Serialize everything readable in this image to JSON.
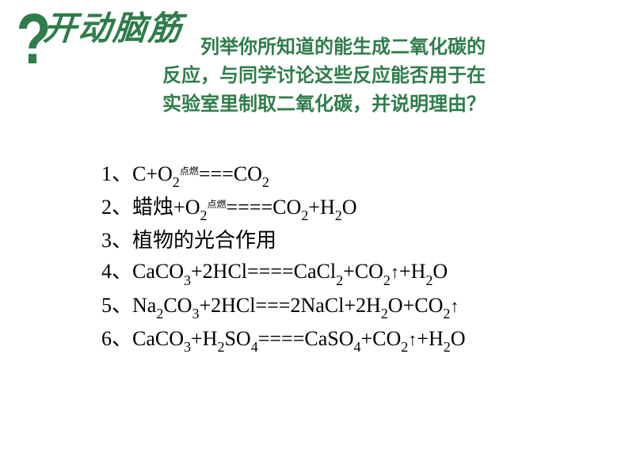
{
  "title": "开动脑筋",
  "question": {
    "line1": "列举你所知道的能生成二氧化碳的",
    "line2": "反应，与同学讨论这些反应能否用于在",
    "line3": "实验室里制取二氧化碳，并说明理由？"
  },
  "equations": {
    "items": [
      {
        "num": "1、",
        "content_html": "C+O<span class='sub'>2</span><span class='condition' style='top:-8px;'>点燃</span>===CO<span class='sub'>2</span>"
      },
      {
        "num": "2、",
        "content_html": "<span class='cn'>蜡烛</span>+O<span class='sub'>2</span><span class='condition' style='top:-8px;'>点燃</span>====CO<span class='sub'>2</span>+H<span class='sub'>2</span>O"
      },
      {
        "num": "3、",
        "content_html": "<span class='cn'>植物的光合作用</span>"
      },
      {
        "num": "4、",
        "content_html": "CaCO<span class='sub'>3</span>+2HCl====CaCl<span class='sub'>2</span>+CO<span class='sub'>2</span><span class='arrow-up'>↑</span>+H<span class='sub'>2</span>O"
      },
      {
        "num": "5、",
        "content_html": "Na<span class='sub'>2</span>CO<span class='sub'>3</span>+2HCl===2NaCl+2H<span class='sub'>2</span>O+CO<span class='sub'>2</span><span class='arrow-up'>↑</span>"
      },
      {
        "num": "6、",
        "content_html": "CaCO<span class='sub'>3</span>+H<span class='sub'>2</span>SO<span class='sub'>4</span>====CaSO<span class='sub'>4</span>+CO<span class='sub'>2</span><span class='arrow-up'>↑</span>+H<span class='sub'>2</span>O"
      }
    ]
  },
  "colors": {
    "green": "#2e7d4a",
    "black": "#000000",
    "background": "#ffffff"
  }
}
